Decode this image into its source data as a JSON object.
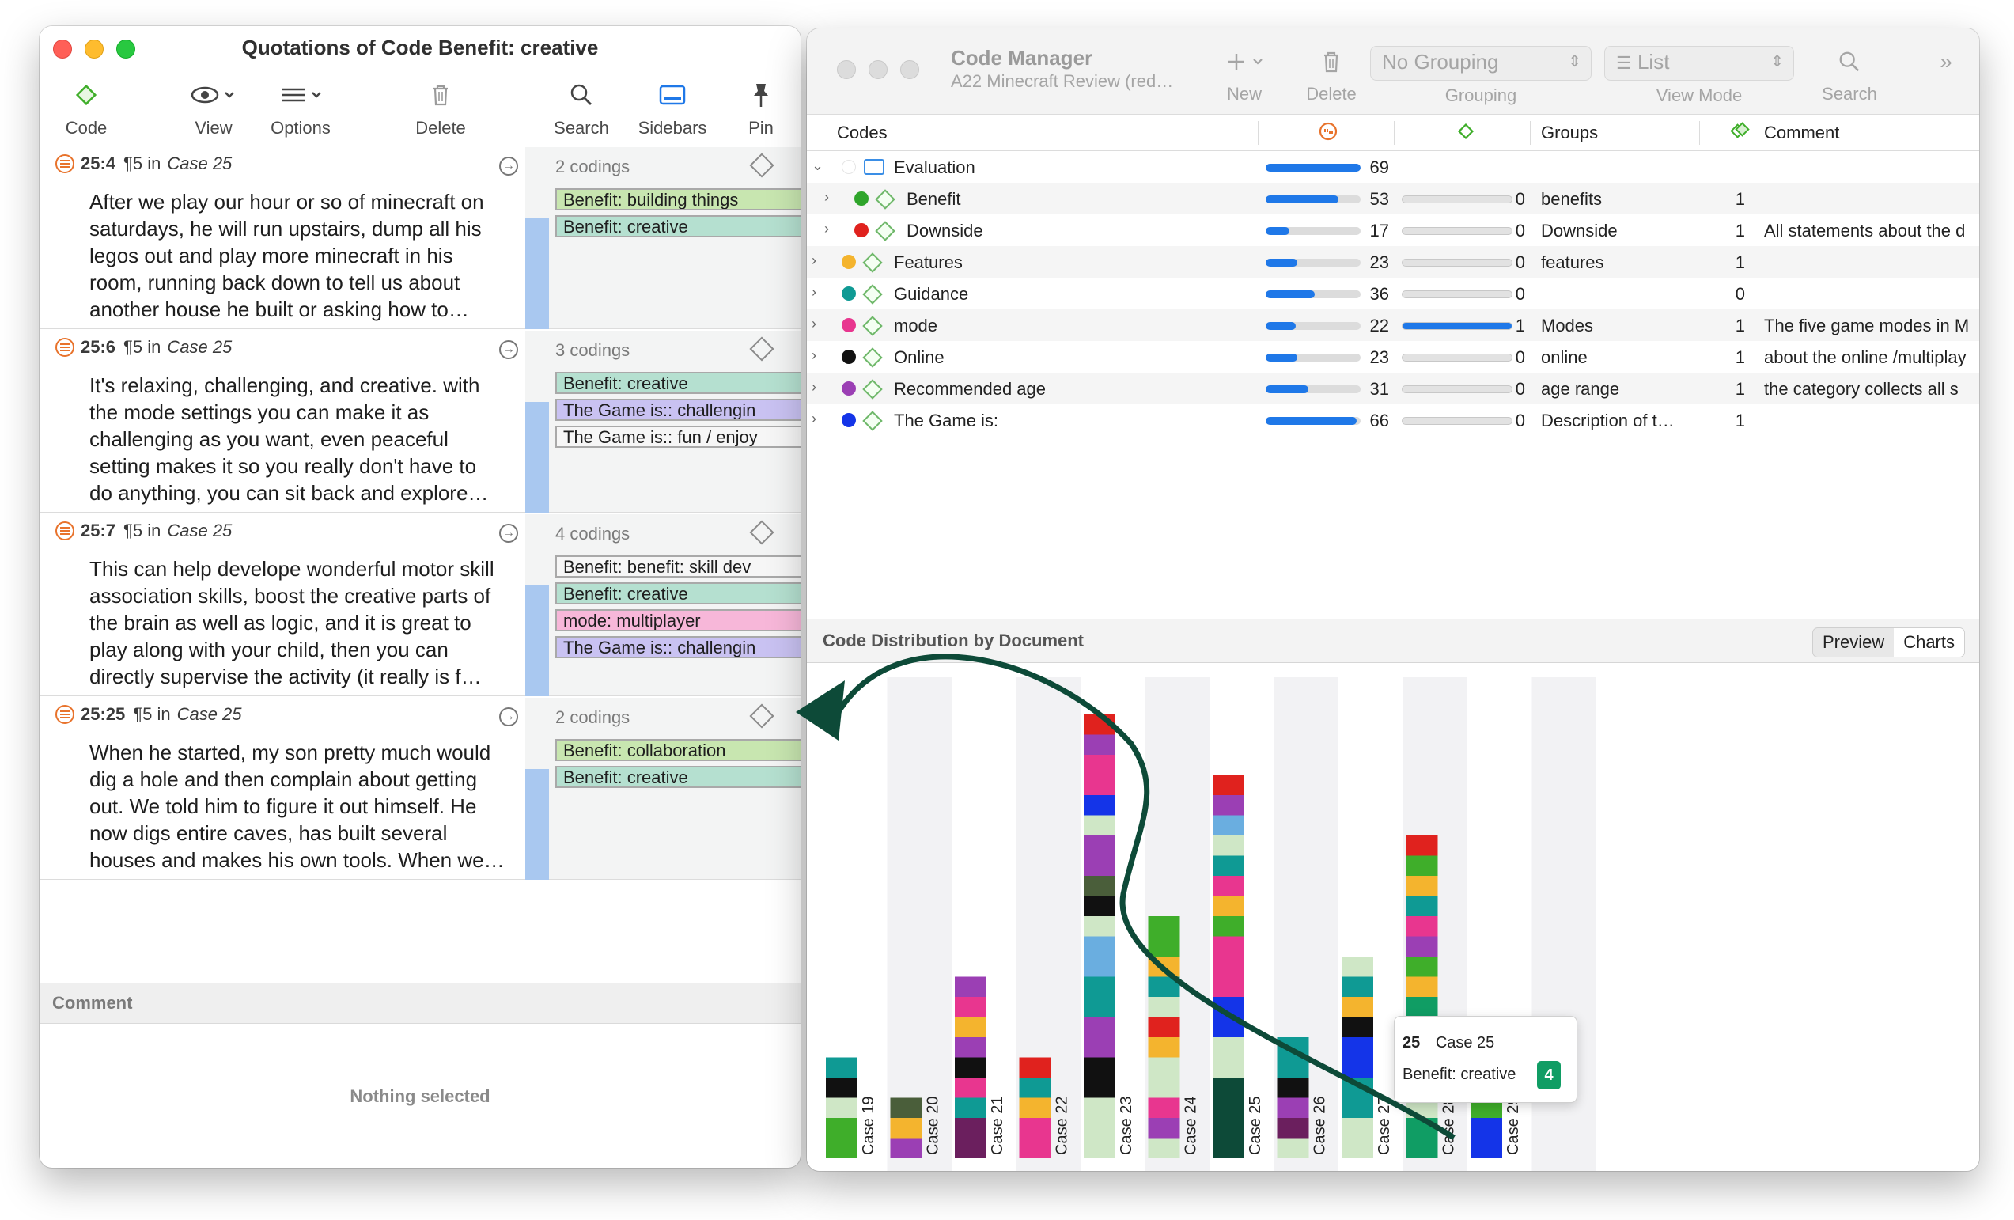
{
  "left_window": {
    "title": "Quotations of Code Benefit: creative",
    "toolbar": {
      "code": "Code",
      "view": "View",
      "options": "Options",
      "delete": "Delete",
      "search": "Search",
      "sidebars": "Sidebars",
      "pin": "Pin"
    },
    "quotations": [
      {
        "id": "25:4",
        "para": "¶5 in",
        "doc": "Case 25",
        "count": "2 codings",
        "lines": [
          "After we play our hour or so of minecraft on",
          "saturdays, he will run upstairs, dump all his",
          "legos out and play more minecraft in his",
          "room, running back down to tell us about",
          "another house he built or asking how to…"
        ],
        "codes": [
          {
            "label": "Benefit: building things",
            "style": "c-green"
          },
          {
            "label": "Benefit: creative",
            "style": "c-teal"
          }
        ]
      },
      {
        "id": "25:6",
        "para": "¶5 in",
        "doc": "Case 25",
        "count": "3 codings",
        "lines": [
          "It's relaxing, challenging, and creative. with",
          "the mode settings you can make it as",
          "challenging as you want, even peaceful",
          "setting makes it so you really don't have to",
          "do anything, you can sit back and explore…"
        ],
        "codes": [
          {
            "label": "Benefit: creative",
            "style": "c-teal"
          },
          {
            "label": "The Game is:: challengin",
            "style": "c-purple"
          },
          {
            "label": "The Game is:: fun / enjoy",
            "style": "c-white"
          }
        ]
      },
      {
        "id": "25:7",
        "para": "¶5 in",
        "doc": "Case 25",
        "count": "4 codings",
        "lines": [
          "This can help develope wonderful motor skill",
          "association skills, boost the creative parts of",
          "the brain as well as logic, and it is great to",
          "play along with your child, then you can",
          "directly supervise the activity (it really is f…"
        ],
        "codes": [
          {
            "label": "Benefit: benefit: skill dev",
            "style": "c-white"
          },
          {
            "label": "Benefit: creative",
            "style": "c-teal"
          },
          {
            "label": "mode: multiplayer",
            "style": "c-pink"
          },
          {
            "label": "The Game is:: challengin",
            "style": "c-purple"
          }
        ]
      },
      {
        "id": "25:25",
        "para": "¶5 in",
        "doc": "Case 25",
        "count": "2 codings",
        "lines": [
          "When he started, my son pretty much would",
          "dig a hole and then complain about getting",
          "out. We told him to figure it out himself. He",
          "now digs entire caves, has built several",
          "houses and makes his own tools. When we…"
        ],
        "codes": [
          {
            "label": "Benefit: collaboration",
            "style": "c-green"
          },
          {
            "label": "Benefit: creative",
            "style": "c-teal"
          }
        ]
      }
    ],
    "comment_header": "Comment",
    "comment_empty": "Nothing selected"
  },
  "right_window": {
    "title": "Code Manager",
    "subtitle": "A22 Minecraft Review (red…",
    "toolbar": {
      "new": "New",
      "delete": "Delete",
      "grouping_value": "No Grouping",
      "grouping_label": "Grouping",
      "view_value": "List",
      "view_label": "View Mode",
      "search": "Search"
    },
    "columns": {
      "codes": "Codes",
      "groups": "Groups",
      "comment": "Comment"
    },
    "rows": [
      {
        "name": "Evaluation",
        "folder": true,
        "indent": 0,
        "expanded": true,
        "color": "",
        "freq": 69,
        "freq_frac": 1.0,
        "dens": "",
        "dens_frac": null,
        "group": "",
        "gcount": "",
        "comment": ""
      },
      {
        "name": "Benefit",
        "indent": 1,
        "color": "#2fa52b",
        "freq": 53,
        "freq_frac": 0.77,
        "dens": "0",
        "dens_frac": 0,
        "group": "benefits",
        "gcount": "1",
        "comment": ""
      },
      {
        "name": "Downside",
        "indent": 1,
        "color": "#e0221e",
        "freq": 17,
        "freq_frac": 0.25,
        "dens": "0",
        "dens_frac": 0,
        "group": "Downside",
        "gcount": "1",
        "comment": "All statements about the d"
      },
      {
        "name": "Features",
        "indent": 0,
        "color": "#f4b42e",
        "freq": 23,
        "freq_frac": 0.33,
        "dens": "0",
        "dens_frac": 0,
        "group": "features",
        "gcount": "1",
        "comment": ""
      },
      {
        "name": "Guidance",
        "indent": 0,
        "color": "#0f9a94",
        "freq": 36,
        "freq_frac": 0.52,
        "dens": "0",
        "dens_frac": 0,
        "group": "",
        "gcount": "0",
        "comment": ""
      },
      {
        "name": "mode",
        "indent": 0,
        "color": "#e8368f",
        "freq": 22,
        "freq_frac": 0.32,
        "dens": "1",
        "dens_frac": 1.0,
        "group": "Modes",
        "gcount": "1",
        "comment": "The five game modes in M"
      },
      {
        "name": "Online",
        "indent": 0,
        "color": "#111111",
        "freq": 23,
        "freq_frac": 0.33,
        "dens": "0",
        "dens_frac": 0,
        "group": "online",
        "gcount": "1",
        "comment": "about the online /multiplay"
      },
      {
        "name": "Recommended age",
        "indent": 0,
        "color": "#9b3fb4",
        "freq": 31,
        "freq_frac": 0.45,
        "dens": "0",
        "dens_frac": 0,
        "group": "age range",
        "gcount": "1",
        "comment": "the category collects all s"
      },
      {
        "name": "The Game is:",
        "indent": 0,
        "color": "#1434e8",
        "freq": 66,
        "freq_frac": 0.96,
        "dens": "0",
        "dens_frac": 0,
        "group": "Description of t…",
        "gcount": "1",
        "comment": ""
      }
    ],
    "distribution": {
      "title": "Code Distribution by Document",
      "tab_preview": "Preview",
      "tab_charts": "Charts",
      "tooltip": {
        "num": "25",
        "doc": "Case 25",
        "code": "Benefit: creative",
        "value": "4"
      }
    }
  },
  "chart_data": {
    "type": "bar",
    "stacked": true,
    "categories": [
      "Case 19",
      "Case 20",
      "Case 21",
      "Case 22",
      "Case 23",
      "Case 24",
      "Case 25",
      "Case 26",
      "Case 27",
      "Case 28",
      "Case 29"
    ],
    "stacks": [
      [
        "#3fae2a",
        "#3fae2a",
        "#cfe7c6",
        "#111111",
        "#0f9a94"
      ],
      [
        "#9b3fb4",
        "#f4b42e",
        "#4a5e3a"
      ],
      [
        "#6b1f5e",
        "#6b1f5e",
        "#0f9a94",
        "#e8368f",
        "#111111",
        "#9b3fb4",
        "#f4b42e",
        "#e8368f",
        "#9b3fb4"
      ],
      [
        "#e8368f",
        "#e8368f",
        "#f4b42e",
        "#0f9a94",
        "#e0221e"
      ],
      [
        "#cfe7c6",
        "#cfe7c6",
        "#cfe7c6",
        "#111111",
        "#111111",
        "#9b3fb4",
        "#9b3fb4",
        "#0f9a94",
        "#0f9a94",
        "#6aaee0",
        "#6aaee0",
        "#cfe7c6",
        "#111111",
        "#4a5e3a",
        "#9b3fb4",
        "#9b3fb4",
        "#cfe7c6",
        "#1434e8",
        "#e8368f",
        "#e8368f",
        "#9b3fb4",
        "#e0221e"
      ],
      [
        "#cfe7c6",
        "#9b3fb4",
        "#e8368f",
        "#cfe7c6",
        "#cfe7c6",
        "#f4b42e",
        "#e0221e",
        "#cfe7c6",
        "#0f9a94",
        "#f4b42e",
        "#3fae2a",
        "#3fae2a"
      ],
      [
        "#0d4a38",
        "#0d4a38",
        "#0d4a38",
        "#0d4a38",
        "#cfe7c6",
        "#cfe7c6",
        "#1434e8",
        "#1434e8",
        "#e8368f",
        "#e8368f",
        "#e8368f",
        "#3fae2a",
        "#f4b42e",
        "#e8368f",
        "#0f9a94",
        "#cfe7c6",
        "#6aaee0",
        "#9b3fb4",
        "#e0221e"
      ],
      [
        "#cfe7c6",
        "#6b1f5e",
        "#9b3fb4",
        "#111111",
        "#0f9a94",
        "#0f9a94"
      ],
      [
        "#cfe7c6",
        "#cfe7c6",
        "#0f9a94",
        "#0f9a94",
        "#1434e8",
        "#1434e8",
        "#111111",
        "#f4b42e",
        "#0f9a94",
        "#cfe7c6"
      ],
      [
        "#109d64",
        "#109d64",
        "#cfe7c6",
        "#111111",
        "#6b1f5e",
        "#0f9a94",
        "#e8368f",
        "#109d64",
        "#f4b42e",
        "#3fae2a",
        "#9b3fb4",
        "#e8368f",
        "#0f9a94",
        "#f4b42e",
        "#3fae2a",
        "#e0221e"
      ],
      [
        "#1434e8",
        "#1434e8",
        "#3fae2a",
        "#3fae2a"
      ]
    ]
  }
}
